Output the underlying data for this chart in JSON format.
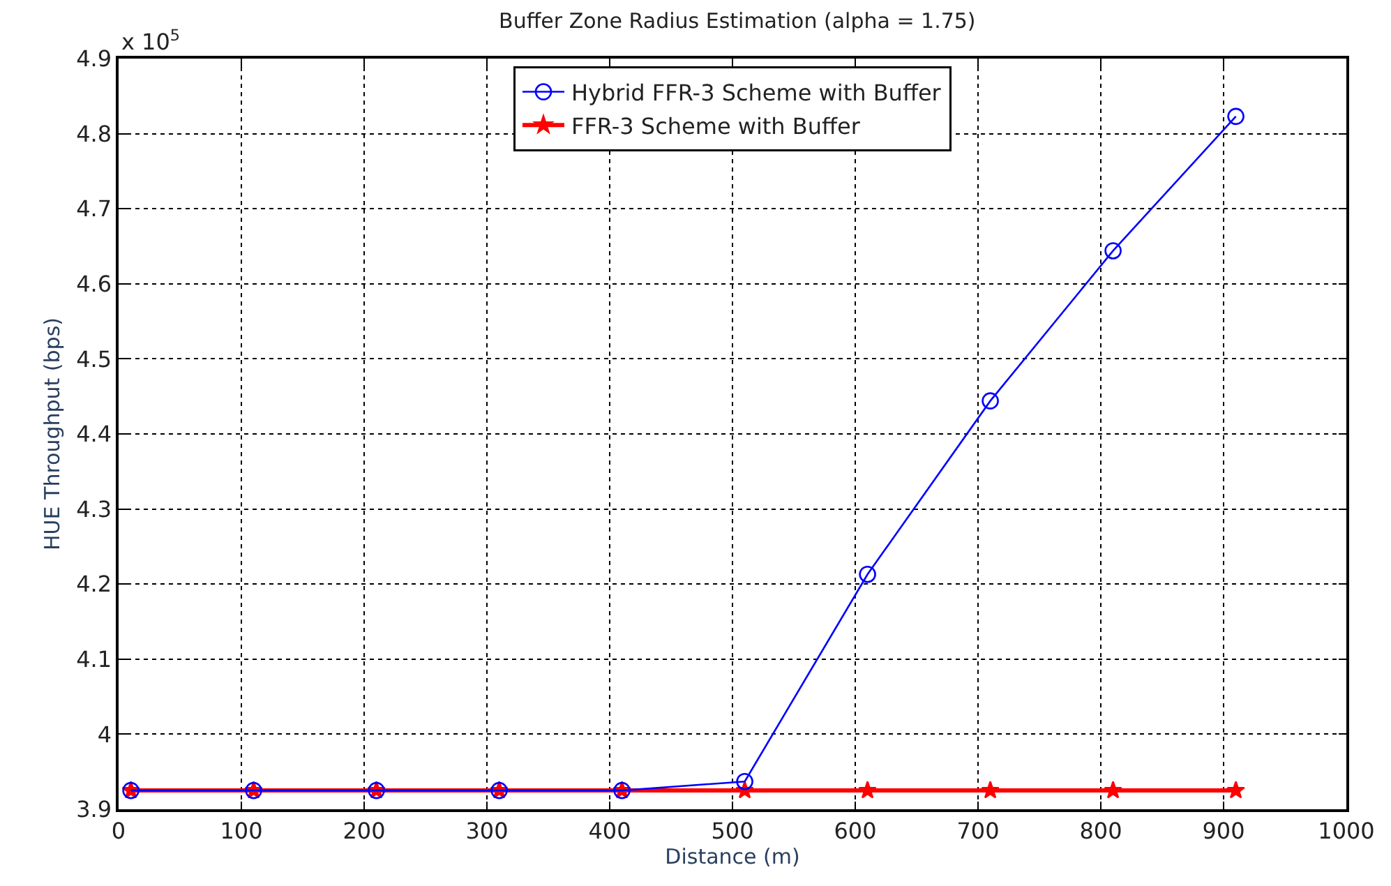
{
  "chart_data": {
    "type": "line",
    "title": "Buffer Zone Radius Estimation (alpha = 1.75)",
    "xlabel": "Distance (m)",
    "ylabel": "HUE Throughput (bps)",
    "annotations": [
      "x 10$^{5}$"
    ],
    "x": [
      10,
      110,
      210,
      310,
      410,
      510,
      610,
      710,
      810,
      910
    ],
    "series": [
      {
        "name": "Hybrid FFR-3 Scheme with Buffer",
        "color": "#0000ff",
        "marker": "circle",
        "values": [
          3.925,
          3.925,
          3.925,
          3.925,
          3.925,
          3.937,
          4.213,
          4.444,
          4.644,
          4.823
        ]
      },
      {
        "name": "FFR-3 Scheme with Buffer",
        "color": "#ff0000",
        "marker": "star",
        "values": [
          3.925,
          3.925,
          3.925,
          3.925,
          3.925,
          3.925,
          3.925,
          3.925,
          3.925,
          3.925
        ]
      }
    ],
    "xlim": [
      0,
      1000
    ],
    "xticks": [
      0,
      100,
      200,
      300,
      400,
      500,
      600,
      700,
      800,
      900,
      1000
    ],
    "ylim": [
      3.9,
      4.9
    ],
    "yticks": [
      3.9,
      4.0,
      4.1,
      4.2,
      4.3,
      4.4,
      4.5,
      4.6,
      4.7,
      4.8,
      4.9
    ],
    "grid": true,
    "legend": "top",
    "line_style": "solid"
  }
}
